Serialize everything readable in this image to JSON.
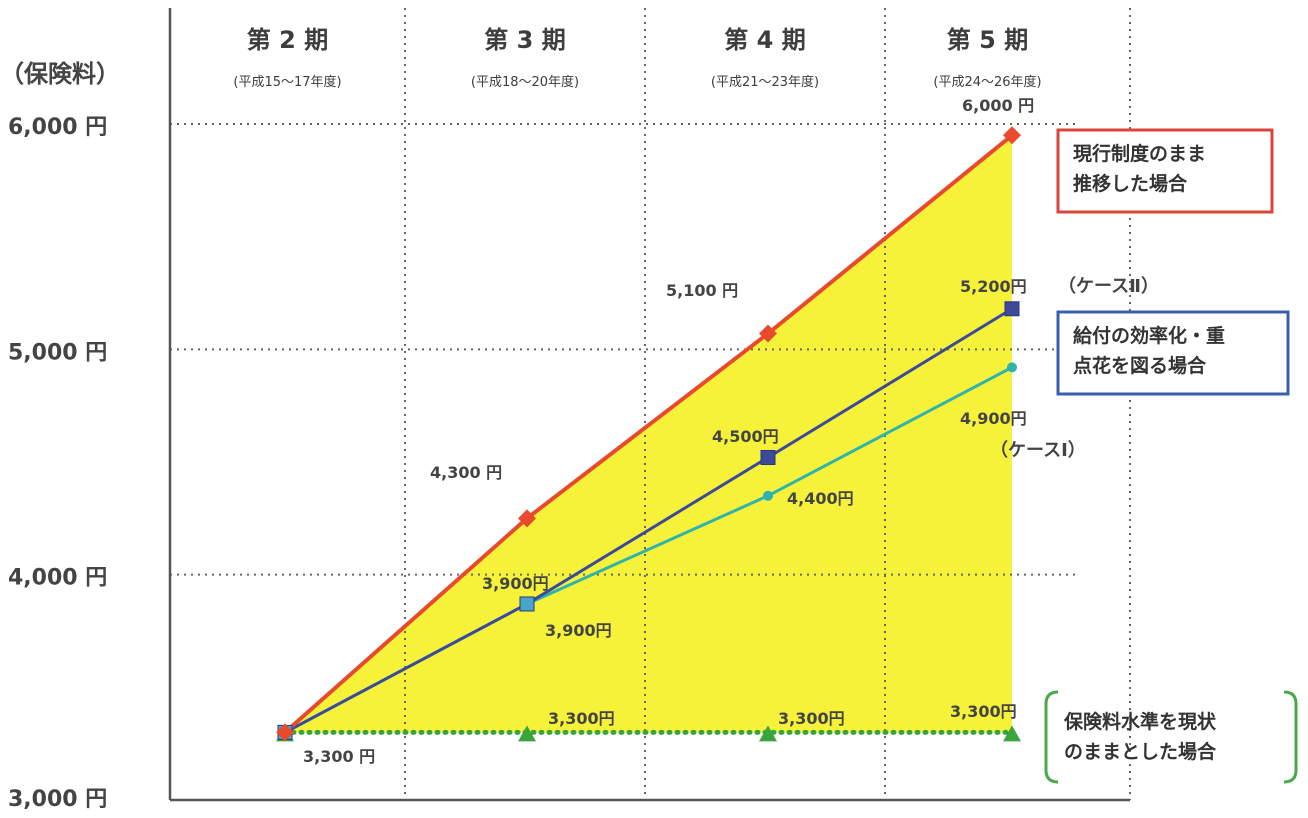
{
  "chart_data": {
    "type": "line",
    "unit_label": "（保険料）",
    "y_ticks": [
      {
        "value": 3000,
        "label": "3,000 円"
      },
      {
        "value": 4000,
        "label": "4,000 円"
      },
      {
        "value": 5000,
        "label": "5,000 円"
      },
      {
        "value": 6000,
        "label": "6,000 円"
      }
    ],
    "ylim": [
      3000,
      6000
    ],
    "periods": [
      {
        "title": "第 2 期",
        "sub": "(平成15～17年度)"
      },
      {
        "title": "第 3 期",
        "sub": "(平成18～20年度)"
      },
      {
        "title": "第 4 期",
        "sub": "(平成21～23年度)"
      },
      {
        "title": "第 5 期",
        "sub": "(平成24～26年度)"
      }
    ],
    "grid": true,
    "series": [
      {
        "key": "current",
        "color": "#e84a2e",
        "marker": "diamond",
        "values": [
          3300,
          4250,
          5070,
          5950
        ],
        "labels": [
          "",
          "4,300 円",
          "5,100 円",
          "6,000 円"
        ]
      },
      {
        "key": "case2",
        "color": "#3d4a9a",
        "marker": "square",
        "values": [
          3300,
          3870,
          4520,
          5180
        ],
        "labels": [
          "",
          "3,900円",
          "4,500円",
          "5,200円"
        ],
        "case_label": "（ケースⅡ）"
      },
      {
        "key": "case1",
        "color": "#2fb3ac",
        "marker": "circle",
        "values": [
          3300,
          3870,
          4350,
          4920
        ],
        "labels": [
          "",
          "3,900円",
          "4,400円",
          "4,900円"
        ],
        "case_label": "（ケースⅠ）"
      },
      {
        "key": "flat",
        "color": "#3aa53a",
        "marker": "triangle",
        "dotted": true,
        "values": [
          3300,
          3300,
          3300,
          3300
        ],
        "labels": [
          "3,300 円",
          "3,300円",
          "3,300円",
          "3,300円"
        ]
      }
    ],
    "annotations": {
      "current_box": [
        "現行制度のまま",
        "推移した場合"
      ],
      "efficiency_box": [
        "給付の効率化・重",
        "点花を図る場合"
      ],
      "flat_box": [
        "保険料水準を現状",
        "のままとした場合"
      ]
    },
    "colors": {
      "fill": "#f6f23a",
      "red_box": "#d9453a",
      "blue_box": "#3a5fb0",
      "green_box": "#4aa84a"
    }
  }
}
